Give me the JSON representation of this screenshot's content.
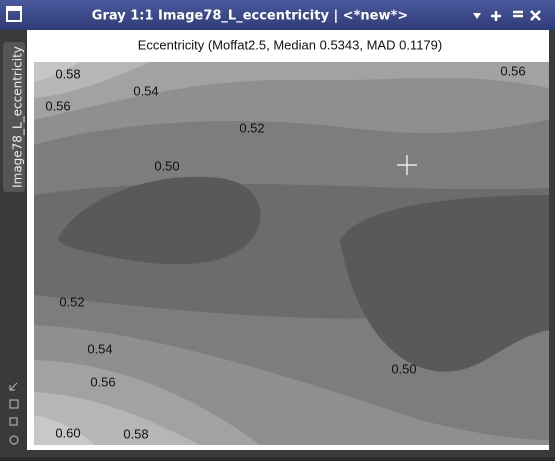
{
  "window": {
    "title": "Gray 1:1 Image78_L_eccentricity | <*new*>",
    "side_tab": "Image78_L_eccentricity"
  },
  "plot": {
    "title": "Eccentricity (Moffat2.5, Median 0.5343, MAD 0.1179)",
    "contour_labels": [
      "0.58",
      "0.56",
      "0.54",
      "0.52",
      "0.50",
      "0.56",
      "0.52",
      "0.54",
      "0.56",
      "0.60",
      "0.58",
      "0.50"
    ]
  }
}
